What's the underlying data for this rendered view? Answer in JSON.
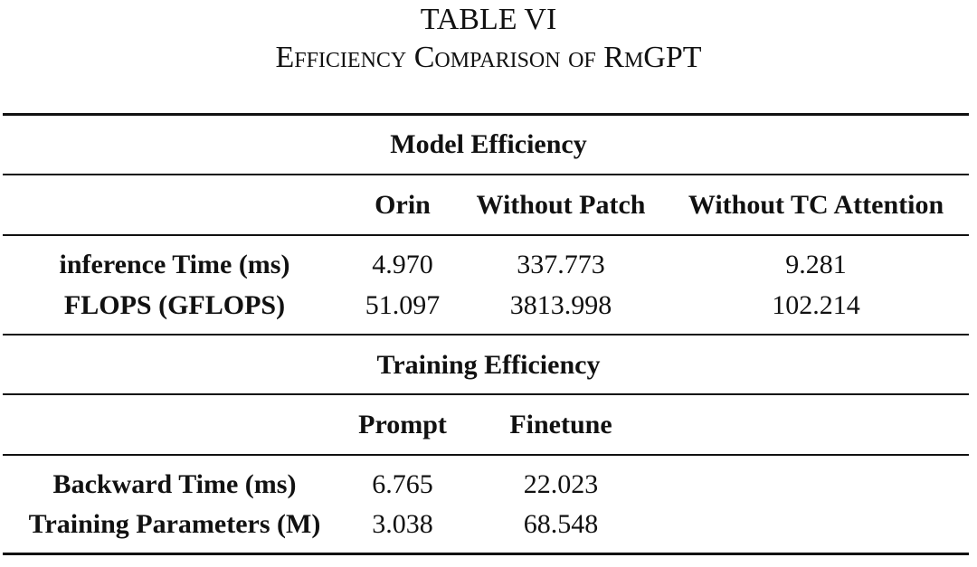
{
  "title": "TABLE VI",
  "subtitle": "Efficiency Comparison of RmGPT",
  "sections": [
    {
      "heading": "Model Efficiency",
      "columns": [
        "Orin",
        "Without Patch",
        "Without TC Attention"
      ],
      "rows": [
        [
          "inference Time (ms)",
          "4.970",
          "337.773",
          "9.281"
        ],
        [
          "FLOPS (GFLOPS)",
          "51.097",
          "3813.998",
          "102.214"
        ]
      ]
    },
    {
      "heading": "Training Efficiency",
      "columns": [
        "Prompt",
        "Finetune"
      ],
      "rows": [
        [
          "Backward Time (ms)",
          "6.765",
          "22.023"
        ],
        [
          "Training Parameters (M)",
          "3.038",
          "68.548"
        ]
      ]
    }
  ]
}
